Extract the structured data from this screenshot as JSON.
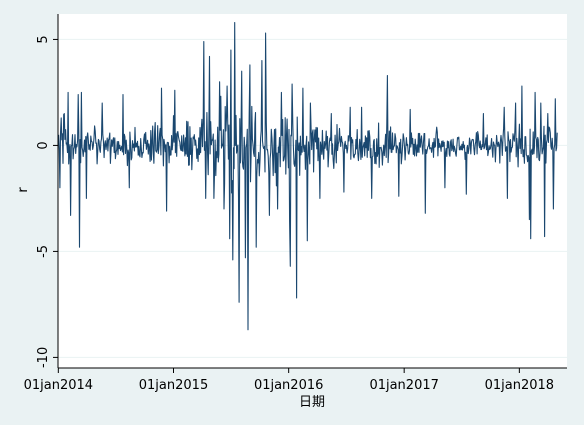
{
  "chart_data": {
    "type": "line",
    "title": "",
    "xlabel": "日期",
    "ylabel": "r",
    "xlim": [
      "2013-12-31",
      "2018-06-01"
    ],
    "ylim": [
      -10.5,
      6.2
    ],
    "yticks": [
      {
        "value": 5,
        "label": "5"
      },
      {
        "value": 0,
        "label": "0"
      },
      {
        "value": -5,
        "label": "-5"
      },
      {
        "value": -10,
        "label": "-10"
      }
    ],
    "xticks": [
      {
        "value": "2014-01-01",
        "label": "01jan2014"
      },
      {
        "value": "2015-01-01",
        "label": "01jan2015"
      },
      {
        "value": "2016-01-01",
        "label": "01jan2016"
      },
      {
        "value": "2017-01-01",
        "label": "01jan2017"
      },
      {
        "value": "2018-01-01",
        "label": "01jan2018"
      }
    ],
    "grid": "horizontal",
    "legend": "none",
    "line_color": "#1a476f",
    "series": [
      {
        "start": "2014-01-02",
        "end": "2018-05-02",
        "anchors": [
          {
            "x": "2014-01-02",
            "y": 0.5
          },
          {
            "x": "2014-01-06",
            "y": -2.0
          },
          {
            "x": "2014-01-10",
            "y": 1.3
          },
          {
            "x": "2014-01-20",
            "y": 1.5
          },
          {
            "x": "2014-02-02",
            "y": 2.5
          },
          {
            "x": "2014-02-10",
            "y": -3.3
          },
          {
            "x": "2014-03-05",
            "y": 2.4
          },
          {
            "x": "2014-03-10",
            "y": -4.8
          },
          {
            "x": "2014-03-15",
            "y": 2.5
          },
          {
            "x": "2014-04-01",
            "y": -2.5
          },
          {
            "x": "2014-05-20",
            "y": 2.0
          },
          {
            "x": "2014-07-25",
            "y": 2.4
          },
          {
            "x": "2014-08-15",
            "y": -2.0
          },
          {
            "x": "2014-11-25",
            "y": 2.7
          },
          {
            "x": "2014-12-10",
            "y": -3.1
          },
          {
            "x": "2015-01-05",
            "y": 2.6
          },
          {
            "x": "2015-04-08",
            "y": 4.9
          },
          {
            "x": "2015-04-14",
            "y": -2.5
          },
          {
            "x": "2015-04-25",
            "y": 4.2
          },
          {
            "x": "2015-05-10",
            "y": -2.5
          },
          {
            "x": "2015-05-28",
            "y": 3.0
          },
          {
            "x": "2015-06-10",
            "y": -3.0
          },
          {
            "x": "2015-06-20",
            "y": 2.8
          },
          {
            "x": "2015-06-29",
            "y": -4.4
          },
          {
            "x": "2015-07-02",
            "y": 4.5
          },
          {
            "x": "2015-07-08",
            "y": -5.4
          },
          {
            "x": "2015-07-15",
            "y": 5.8
          },
          {
            "x": "2015-07-28",
            "y": -7.4
          },
          {
            "x": "2015-08-05",
            "y": 3.5
          },
          {
            "x": "2015-08-18",
            "y": -5.3
          },
          {
            "x": "2015-08-25",
            "y": -8.7
          },
          {
            "x": "2015-09-01",
            "y": 3.8
          },
          {
            "x": "2015-09-20",
            "y": -4.8
          },
          {
            "x": "2015-10-08",
            "y": 4.0
          },
          {
            "x": "2015-10-20",
            "y": 5.3
          },
          {
            "x": "2015-11-01",
            "y": -3.3
          },
          {
            "x": "2015-11-28",
            "y": -3.0
          },
          {
            "x": "2015-12-10",
            "y": 2.5
          },
          {
            "x": "2016-01-04",
            "y": -3.6
          },
          {
            "x": "2016-01-07",
            "y": -5.7
          },
          {
            "x": "2016-01-12",
            "y": 2.9
          },
          {
            "x": "2016-01-26",
            "y": -7.2
          },
          {
            "x": "2016-02-15",
            "y": 2.7
          },
          {
            "x": "2016-02-29",
            "y": -4.5
          },
          {
            "x": "2016-03-10",
            "y": 2.0
          },
          {
            "x": "2016-04-10",
            "y": -2.5
          },
          {
            "x": "2016-05-15",
            "y": 1.5
          },
          {
            "x": "2016-06-24",
            "y": -2.2
          },
          {
            "x": "2016-07-15",
            "y": 1.8
          },
          {
            "x": "2016-08-20",
            "y": 1.8
          },
          {
            "x": "2016-09-20",
            "y": -2.5
          },
          {
            "x": "2016-11-10",
            "y": 3.3
          },
          {
            "x": "2016-12-15",
            "y": -2.4
          },
          {
            "x": "2017-01-20",
            "y": 1.7
          },
          {
            "x": "2017-03-10",
            "y": -3.2
          },
          {
            "x": "2017-05-10",
            "y": -2.0
          },
          {
            "x": "2017-07-17",
            "y": -2.3
          },
          {
            "x": "2017-09-10",
            "y": 1.5
          },
          {
            "x": "2017-11-15",
            "y": 1.8
          },
          {
            "x": "2017-11-25",
            "y": -2.5
          },
          {
            "x": "2017-12-20",
            "y": 2.0
          },
          {
            "x": "2018-01-10",
            "y": 2.8
          },
          {
            "x": "2018-02-02",
            "y": -3.5
          },
          {
            "x": "2018-02-06",
            "y": -4.4
          },
          {
            "x": "2018-02-20",
            "y": 2.5
          },
          {
            "x": "2018-03-10",
            "y": 2.0
          },
          {
            "x": "2018-03-23",
            "y": -4.3
          },
          {
            "x": "2018-04-02",
            "y": 1.5
          },
          {
            "x": "2018-04-20",
            "y": -3.0
          },
          {
            "x": "2018-04-25",
            "y": 2.2
          },
          {
            "x": "2018-05-02",
            "y": 0.6
          }
        ],
        "vol": [
          {
            "x": "2014-01-02",
            "sd": 1.0
          },
          {
            "x": "2014-06-01",
            "sd": 0.8
          },
          {
            "x": "2014-12-01",
            "sd": 0.9
          },
          {
            "x": "2015-03-15",
            "sd": 1.0
          },
          {
            "x": "2015-05-01",
            "sd": 1.7
          },
          {
            "x": "2015-07-01",
            "sd": 2.4
          },
          {
            "x": "2015-09-01",
            "sd": 1.8
          },
          {
            "x": "2015-11-01",
            "sd": 1.3
          },
          {
            "x": "2016-01-10",
            "sd": 1.6
          },
          {
            "x": "2016-03-15",
            "sd": 1.1
          },
          {
            "x": "2016-08-01",
            "sd": 0.8
          },
          {
            "x": "2017-02-01",
            "sd": 0.8
          },
          {
            "x": "2017-08-01",
            "sd": 0.55
          },
          {
            "x": "2017-12-15",
            "sd": 0.7
          },
          {
            "x": "2018-02-10",
            "sd": 1.2
          },
          {
            "x": "2018-05-02",
            "sd": 1.0
          }
        ]
      }
    ]
  }
}
